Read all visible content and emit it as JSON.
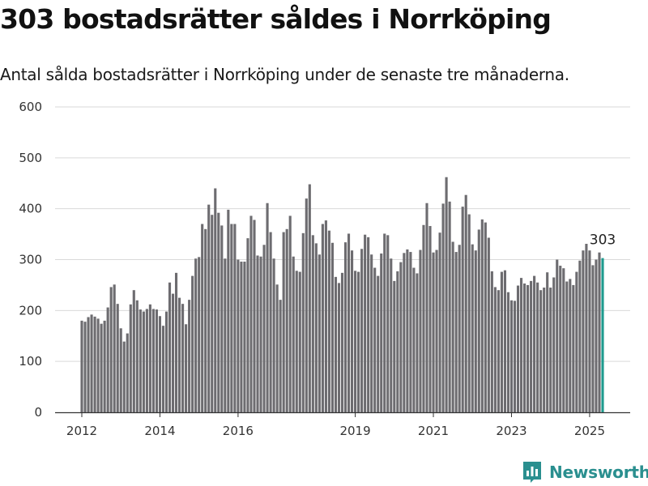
{
  "header": {
    "title": "303 bostadsrätter såldes i Norrköping",
    "subtitle": "Antal sålda bostadsrätter i Norrköping under de senaste tre månaderna."
  },
  "brand": {
    "name": "Newsworthy",
    "color": "#2a8f8f"
  },
  "chart_data": {
    "type": "bar",
    "title": "",
    "xlabel": "",
    "ylabel": "",
    "ylim": [
      0,
      600
    ],
    "y_ticks": [
      0,
      100,
      200,
      300,
      400,
      500,
      600
    ],
    "x_tick_labels": [
      "2012",
      "2014",
      "2016",
      "2019",
      "2021",
      "2023",
      "2025"
    ],
    "grid": true,
    "bar_color": "#6d6c70",
    "highlight_color": "#1e9b8e",
    "highlight_label": "303",
    "start": "2012-01",
    "series": [
      {
        "values": [
          180,
          178,
          187,
          192,
          188,
          184,
          174,
          180,
          206,
          246,
          251,
          213,
          165,
          139,
          155,
          212,
          240,
          220,
          202,
          198,
          203,
          212,
          203,
          202,
          189,
          170,
          198,
          255,
          233,
          274,
          225,
          213,
          173,
          221,
          268,
          302,
          305,
          370,
          360,
          408,
          388,
          440,
          392,
          367,
          302,
          398,
          370,
          370,
          300,
          296,
          296,
          342,
          386,
          378,
          308,
          306,
          329,
          411,
          354,
          302,
          251,
          221,
          354,
          360,
          386,
          306,
          278,
          276,
          352,
          420,
          448,
          348,
          332,
          310,
          370,
          377,
          357,
          333,
          266,
          254,
          274,
          334,
          351,
          318,
          278,
          276,
          321,
          349,
          344,
          310,
          284,
          268,
          312,
          351,
          348,
          302,
          258,
          277,
          295,
          313,
          320,
          315,
          284,
          273,
          319,
          368,
          411,
          366,
          314,
          319,
          353,
          410,
          462,
          414,
          335,
          315,
          329,
          404,
          427,
          389,
          330,
          318,
          359,
          379,
          373,
          343,
          277,
          246,
          240,
          276,
          279,
          236,
          220,
          219,
          249,
          264,
          253,
          250,
          258,
          268,
          255,
          240,
          245,
          275,
          245,
          265,
          300,
          288,
          283,
          257,
          262,
          250,
          276,
          298,
          318,
          331,
          318,
          289,
          300,
          314,
          303
        ]
      }
    ]
  }
}
